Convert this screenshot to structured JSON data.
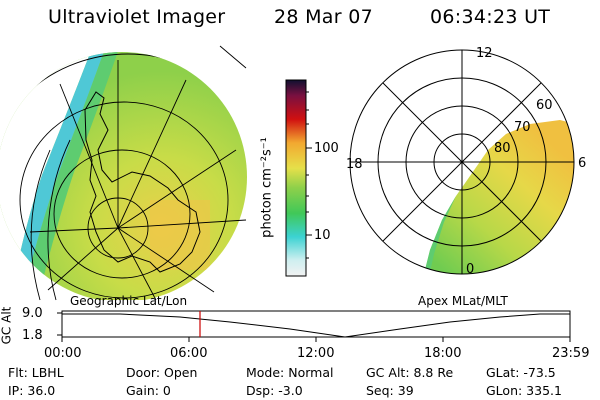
{
  "header": {
    "instrument": "Ultraviolet Imager",
    "date": "28 Mar 07",
    "time": "06:34:23 UT"
  },
  "left_panel": {
    "label": "Geographic Lat/Lon"
  },
  "right_panel": {
    "label": "Apex MLat/MLT",
    "mlt_labels": [
      "12",
      "18",
      "6",
      "0"
    ],
    "mlat_labels": [
      "60",
      "70",
      "80"
    ]
  },
  "colorbar": {
    "unit_label": "photon cm⁻²s⁻¹",
    "ticks": [
      "100",
      "10"
    ],
    "scale": "log"
  },
  "altitude_plot": {
    "ylabel": "GC Alt",
    "yticks": [
      "9.0",
      "1.8"
    ],
    "xticks": [
      "00:00",
      "06:00",
      "12:00",
      "18:00",
      "23:59"
    ],
    "marker_time": "06:34"
  },
  "footer": {
    "flt": "Flt: LBHL",
    "ip": "IP: 36.0",
    "door": "Door: Open",
    "gain": "Gain: 0",
    "mode": "Mode: Normal",
    "dsp": "Dsp: -3.0",
    "gcalt": "GC Alt: 8.8 Re",
    "seq": "Seq: 39",
    "glat": "GLat: -73.5",
    "glon": "GLon: 335.1"
  },
  "colors": {
    "green": "#8ed04a",
    "yellow": "#e8e04a",
    "orange": "#f0b43c",
    "cyan": "#5ad2cc",
    "marker": "#cc0000"
  }
}
